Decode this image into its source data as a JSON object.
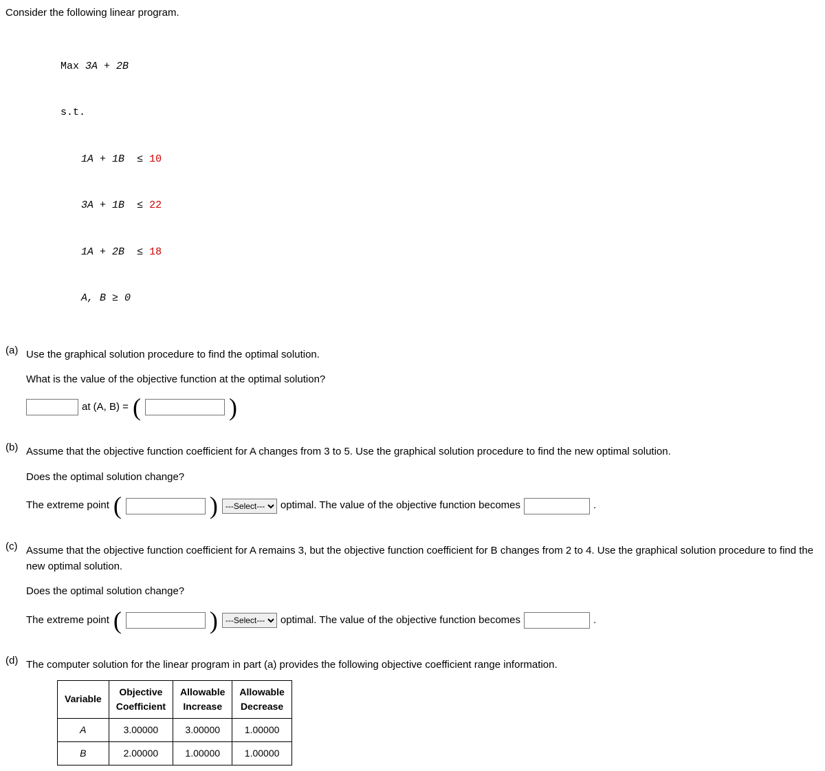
{
  "intro": "Consider the following linear program.",
  "lp": {
    "objective_label": "Max",
    "objective_expr": "3A + 2B",
    "subject_to": "s.t.",
    "constraints": [
      {
        "lhs": "1A + 1B",
        "op": "≤",
        "rhs": "10"
      },
      {
        "lhs": "3A + 1B",
        "op": "≤",
        "rhs": "22"
      },
      {
        "lhs": "1A + 2B",
        "op": "≤",
        "rhs": "18"
      }
    ],
    "nonneg": "A, B ≥ 0"
  },
  "a": {
    "label": "(a)",
    "q1": "Use the graphical solution procedure to find the optimal solution.",
    "q2": "What is the value of the objective function at the optimal solution?",
    "at_text": " at (A, B) = "
  },
  "b": {
    "label": "(b)",
    "q1": "Assume that the objective function coefficient for A changes from 3 to 5. Use the graphical solution procedure to find the new optimal solution.",
    "q2": "Does the optimal solution change?",
    "extreme_text": "The extreme point",
    "select_placeholder": "---Select---",
    "after_select": " optimal. The value of the objective function becomes ",
    "period": " ."
  },
  "c": {
    "label": "(c)",
    "q1": "Assume that the objective function coefficient for A remains 3, but the objective function coefficient for B changes from 2 to 4. Use the graphical solution procedure to find the new optimal solution.",
    "q2": "Does the optimal solution change?",
    "extreme_text": "The extreme point",
    "select_placeholder": "---Select---",
    "after_select": " optimal. The value of the objective function becomes ",
    "period": " ."
  },
  "d": {
    "label": "(d)",
    "q1": "The computer solution for the linear program in part (a) provides the following objective coefficient range information.",
    "table": {
      "headers": [
        "Variable",
        "Objective\nCoefficient",
        "Allowable\nIncrease",
        "Allowable\nDecrease"
      ],
      "rows": [
        [
          "A",
          "3.00000",
          "3.00000",
          "1.00000"
        ],
        [
          "B",
          "2.00000",
          "1.00000",
          "1.00000"
        ]
      ]
    }
  }
}
